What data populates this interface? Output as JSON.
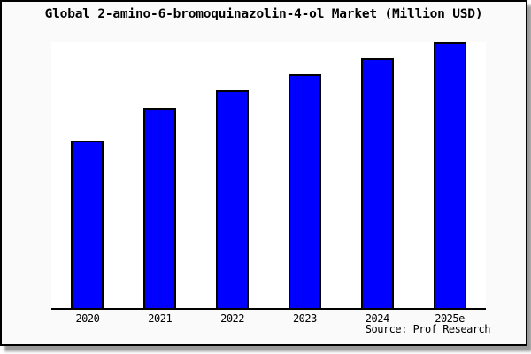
{
  "chart_data": {
    "type": "bar",
    "title": "Global 2-amino-6-bromoquinazolin-4-ol Market (Million USD)",
    "categories": [
      "2020",
      "2021",
      "2022",
      "2023",
      "2024",
      "2025e"
    ],
    "values": [
      189,
      226,
      246,
      264,
      282,
      300
    ],
    "values_note": "No y-axis ticks or numeric labels are visible; values are relative bar heights read from the plot (pixels above baseline).",
    "xlabel": "",
    "ylabel": "",
    "ylim": [
      0,
      300
    ],
    "grid": false,
    "legend": false,
    "colors": {
      "bar_fill": "#0000ff",
      "bar_border": "#000000",
      "axis": "#000000",
      "chart_bg": "#fafafa",
      "plot_bg": "#ffffff",
      "frame_border": "#000000"
    }
  },
  "footer": {
    "source": "Source: Prof Research"
  }
}
